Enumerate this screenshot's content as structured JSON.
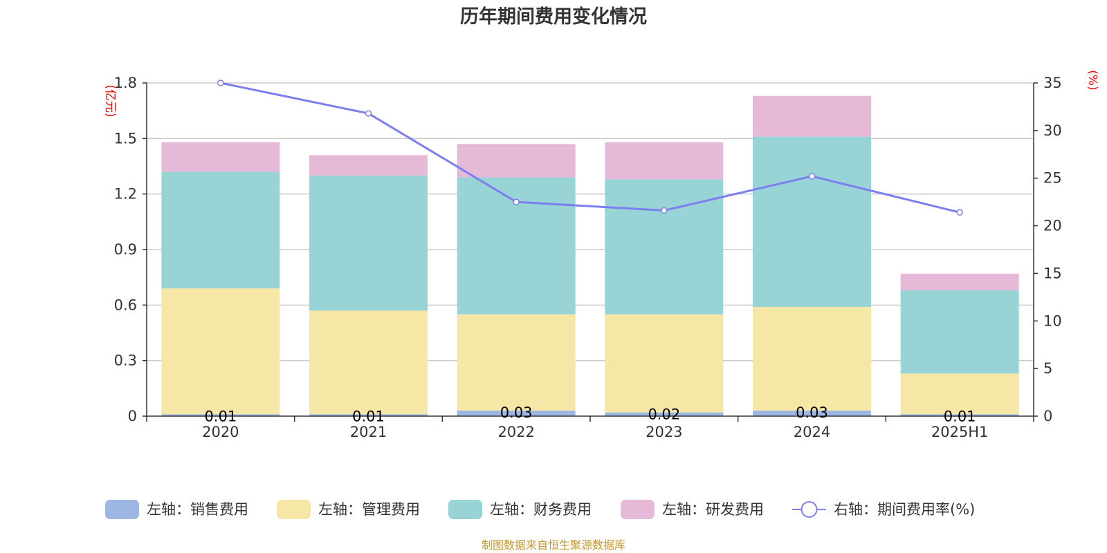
{
  "title": "历年期间费用变化情况",
  "source": "制图数据来自恒生聚源数据库",
  "chart_data": {
    "type": "bar",
    "stacked": true,
    "title": "历年期间费用变化情况",
    "categories": [
      "2020",
      "2021",
      "2022",
      "2023",
      "2024",
      "2025H1"
    ],
    "left_axis": {
      "unit": "(亿元)",
      "ylim": [
        0,
        1.8
      ],
      "ticks": [
        "0",
        "0.3",
        "0.6",
        "0.9",
        "1.2",
        "1.5",
        "1.8"
      ]
    },
    "right_axis": {
      "unit": "(%)",
      "ylim": [
        0,
        35
      ],
      "ticks": [
        "0",
        "5",
        "10",
        "15",
        "20",
        "25",
        "30",
        "35"
      ]
    },
    "series": [
      {
        "name": "左轴：销售费用",
        "axis": "left",
        "type": "bar",
        "color": "#9cb7e1",
        "values": [
          0.01,
          0.01,
          0.03,
          0.02,
          0.03,
          0.01
        ],
        "labels": [
          "0.01",
          "0.01",
          "0.03",
          "0.02",
          "0.03",
          "0.01"
        ]
      },
      {
        "name": "左轴：管理费用",
        "axis": "left",
        "type": "bar",
        "color": "#f7e7a7",
        "values": [
          0.68,
          0.56,
          0.52,
          0.53,
          0.56,
          0.22
        ]
      },
      {
        "name": "左轴：财务费用",
        "axis": "left",
        "type": "bar",
        "color": "#98d3d5",
        "values": [
          0.63,
          0.73,
          0.74,
          0.73,
          0.92,
          0.45
        ]
      },
      {
        "name": "左轴：研发费用",
        "axis": "left",
        "type": "bar",
        "color": "#e6b9d9",
        "values": [
          0.16,
          0.11,
          0.18,
          0.2,
          0.22,
          0.09
        ]
      },
      {
        "name": "右轴：期间费用率(%)",
        "axis": "right",
        "type": "line",
        "color": "#7b7ff0",
        "values": [
          35.0,
          31.8,
          22.5,
          21.6,
          25.2,
          21.4
        ]
      }
    ],
    "grid": true,
    "legend_position": "bottom"
  }
}
